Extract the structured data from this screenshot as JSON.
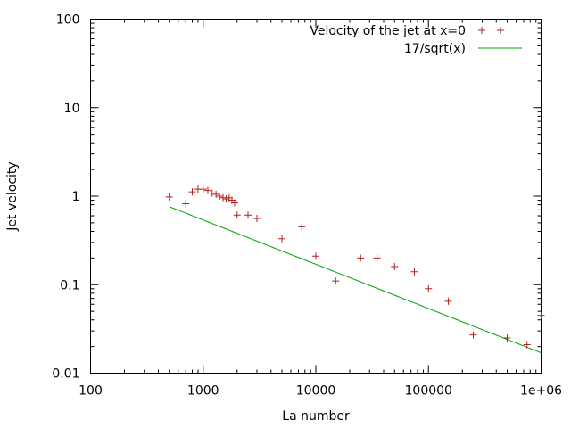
{
  "chart_data": {
    "type": "scatter",
    "title": "",
    "xlabel": "La number",
    "ylabel": "Jet velocity",
    "xscale": "log",
    "yscale": "log",
    "xlim": [
      100,
      1000000
    ],
    "ylim": [
      0.01,
      100
    ],
    "grid": false,
    "legend_position": "top-right",
    "x_ticks": [
      {
        "value": 100,
        "label": "100"
      },
      {
        "value": 1000,
        "label": "1000"
      },
      {
        "value": 10000,
        "label": "10000"
      },
      {
        "value": 100000,
        "label": "100000"
      },
      {
        "value": 1000000,
        "label": "1e+06"
      }
    ],
    "y_ticks": [
      {
        "value": 0.01,
        "label": "0.01"
      },
      {
        "value": 0.1,
        "label": "0.1"
      },
      {
        "value": 1,
        "label": "1"
      },
      {
        "value": 10,
        "label": "10"
      },
      {
        "value": 100,
        "label": "100"
      }
    ],
    "series": [
      {
        "name": "Velocity of the jet at x=0",
        "style": "points",
        "marker": "+",
        "color": "#b22222",
        "points": [
          [
            500,
            0.98
          ],
          [
            700,
            0.82
          ],
          [
            800,
            1.12
          ],
          [
            900,
            1.2
          ],
          [
            1000,
            1.2
          ],
          [
            1100,
            1.16
          ],
          [
            1200,
            1.08
          ],
          [
            1300,
            1.05
          ],
          [
            1400,
            1.0
          ],
          [
            1500,
            0.96
          ],
          [
            1600,
            0.93
          ],
          [
            1700,
            0.96
          ],
          [
            1800,
            0.9
          ],
          [
            1900,
            0.84
          ],
          [
            2000,
            0.61
          ],
          [
            2500,
            0.61
          ],
          [
            3000,
            0.56
          ],
          [
            5000,
            0.33
          ],
          [
            7500,
            0.45
          ],
          [
            10000,
            0.21
          ],
          [
            15000,
            0.11
          ],
          [
            25000,
            0.2
          ],
          [
            35000,
            0.2
          ],
          [
            50000,
            0.16
          ],
          [
            75000,
            0.14
          ],
          [
            100000,
            0.09
          ],
          [
            150000,
            0.065
          ],
          [
            250000,
            0.027
          ],
          [
            500000,
            0.025
          ],
          [
            750000,
            0.021
          ],
          [
            1000000,
            0.045
          ]
        ]
      },
      {
        "name": "17/sqrt(x)",
        "style": "line",
        "color": "#00a000",
        "function": "17/sqrt(x)",
        "x_range": [
          500,
          1000000
        ]
      }
    ]
  }
}
